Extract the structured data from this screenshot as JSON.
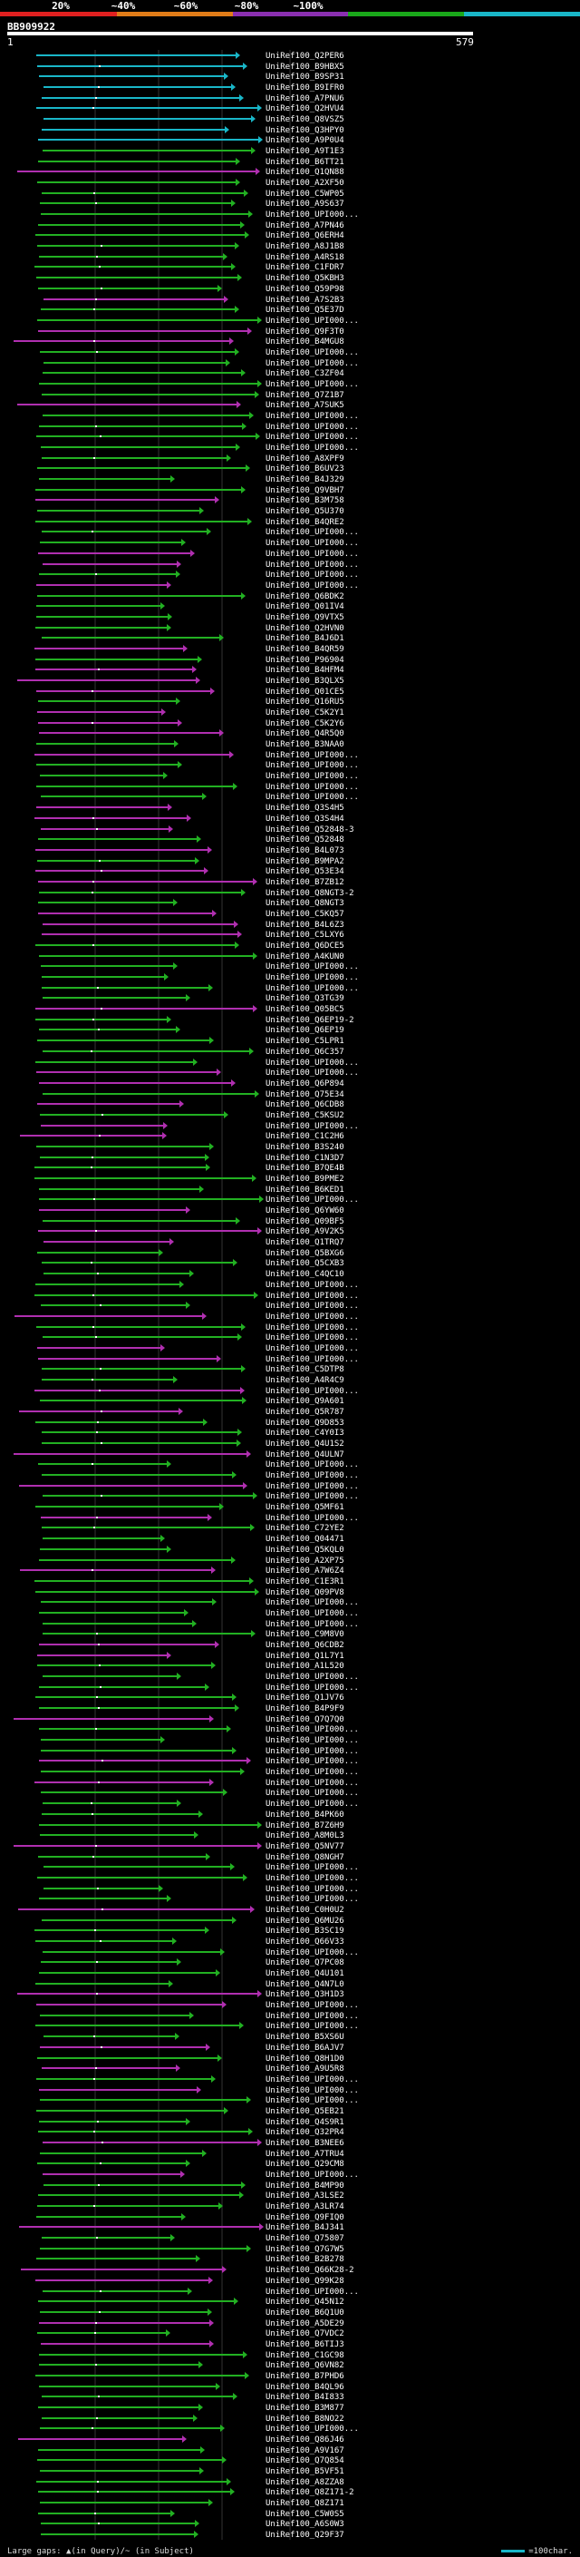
{
  "legend": {
    "segments": [
      {
        "label": "20%",
        "color": "#e02020"
      },
      {
        "label": "~40%",
        "color": "#e07c18"
      },
      {
        "label": "~60%",
        "color": "#8a2fb0"
      },
      {
        "label": "~80%",
        "color": "#1aa81a"
      },
      {
        "label": "~100%",
        "color": "#19b6c8"
      }
    ]
  },
  "query": {
    "id": "BB909922",
    "start": "1",
    "end": "579"
  },
  "footer": {
    "gaps_text": "Large gaps: ▲(in Query)/~ (in Subject)",
    "scale_text": "=100char."
  },
  "identity_colors": {
    "cyan": "#19b6c8",
    "green": "#22b022",
    "magenta": "#b02fb0"
  },
  "hits": [
    "UniRef100_Q2PER6",
    "UniRef100_B9HBX5",
    "UniRef100_B9SP31",
    "UniRef100_B9IFR0",
    "UniRef100_A7PNU6",
    "UniRef100_Q2HVU4",
    "UniRef100_Q8VSZ5",
    "UniRef100_Q3HPY0",
    "UniRef100_A9P0U4",
    "UniRef100_A9T1E3",
    "UniRef100_B6TT21",
    "UniRef100_Q1QN88",
    "UniRef100_A2XF50",
    "UniRef100_C5WP05",
    "UniRef100_A9S637",
    "UniRef100_UPI000...",
    "UniRef100_A7PN46",
    "UniRef100_Q6ERH4",
    "UniRef100_A8J1B8",
    "UniRef100_A4RS18",
    "UniRef100_C1FDR7",
    "UniRef100_Q5KBH3",
    "UniRef100_Q59P98",
    "UniRef100_A7S2B3",
    "UniRef100_Q5E37D",
    "UniRef100_UPI000...",
    "UniRef100_Q9F3T0",
    "UniRef100_B4MGU8",
    "UniRef100_UPI000...",
    "UniRef100_UPI000...",
    "UniRef100_C3ZF04",
    "UniRef100_UPI000...",
    "UniRef100_Q7Z1B7",
    "UniRef100_A7SUK5",
    "UniRef100_UPI000...",
    "UniRef100_UPI000...",
    "UniRef100_UPI000...",
    "UniRef100_UPI000...",
    "UniRef100_A8XPF9",
    "UniRef100_B6UV23",
    "UniRef100_B4J329",
    "UniRef100_Q9VBH7",
    "UniRef100_B3M758",
    "UniRef100_Q5U370",
    "UniRef100_B4QRE2",
    "UniRef100_UPI000...",
    "UniRef100_UPI000...",
    "UniRef100_UPI000...",
    "UniRef100_UPI000...",
    "UniRef100_UPI000...",
    "UniRef100_UPI000...",
    "UniRef100_Q6BDK2",
    "UniRef100_Q01IV4",
    "UniRef100_Q9VTX5",
    "UniRef100_Q2HVN0",
    "UniRef100_B4J6D1",
    "UniRef100_B4QR59",
    "UniRef100_P96904",
    "UniRef100_B4HFM4",
    "UniRef100_B3QLX5",
    "UniRef100_Q01CE5",
    "UniRef100_Q16RU5",
    "UniRef100_C5K2Y1",
    "UniRef100_C5K2Y6",
    "UniRef100_Q4R5Q0",
    "UniRef100_B3NAA0",
    "UniRef100_UPI000...",
    "UniRef100_UPI000...",
    "UniRef100_UPI000...",
    "UniRef100_UPI000...",
    "UniRef100_UPI000...",
    "UniRef100_Q3S4H5",
    "UniRef100_Q3S4H4",
    "UniRef100_Q52848-3",
    "UniRef100_Q52848",
    "UniRef100_B4L073",
    "UniRef100_B9MPA2",
    "UniRef100_Q53E34",
    "UniRef100_B7ZB12",
    "UniRef100_Q8NGT3-2",
    "UniRef100_Q8NGT3",
    "UniRef100_C5KQ57",
    "UniRef100_B4L6Z3",
    "UniRef100_C5LXY6",
    "UniRef100_Q6DCE5",
    "UniRef100_A4KUN0",
    "UniRef100_UPI000...",
    "UniRef100_UPI000...",
    "UniRef100_UPI000...",
    "UniRef100_Q3TG39",
    "UniRef100_Q05BC5",
    "UniRef100_Q6EP19-2",
    "UniRef100_Q6EP19",
    "UniRef100_C5LPR1",
    "UniRef100_Q6C357",
    "UniRef100_UPI000...",
    "UniRef100_UPI000...",
    "UniRef100_Q6P894",
    "UniRef100_Q75E34",
    "UniRef100_Q6CDB8",
    "UniRef100_C5KSU2",
    "UniRef100_UPI000...",
    "UniRef100_C1C2H6",
    "UniRef100_B3S240",
    "UniRef100_C1N3D7",
    "UniRef100_B7QE4B",
    "UniRef100_B9PME2",
    "UniRef100_B6KED1",
    "UniRef100_UPI000...",
    "UniRef100_Q6YW60",
    "UniRef100_Q09BF5",
    "UniRef100_A9V2K5",
    "UniRef100_Q1TRQ7",
    "UniRef100_Q5BXG6",
    "UniRef100_Q5CXB3",
    "UniRef100_C4QC10",
    "UniRef100_UPI000...",
    "UniRef100_UPI000...",
    "UniRef100_UPI000...",
    "UniRef100_UPI000...",
    "UniRef100_UPI000...",
    "UniRef100_UPI000...",
    "UniRef100_UPI000...",
    "UniRef100_UPI000...",
    "UniRef100_C5DTP8",
    "UniRef100_A4R4C9",
    "UniRef100_UPI000...",
    "UniRef100_Q9A601",
    "UniRef100_Q5R787",
    "UniRef100_Q9D853",
    "UniRef100_C4Y0I3",
    "UniRef100_Q4U1S2",
    "UniRef100_Q4ULN7",
    "UniRef100_UPI000...",
    "UniRef100_UPI000...",
    "UniRef100_UPI000...",
    "UniRef100_UPI000...",
    "UniRef100_Q5MF61",
    "UniRef100_UPI000...",
    "UniRef100_C72YE2",
    "UniRef100_Q04471",
    "UniRef100_Q5KQL0",
    "UniRef100_A2XP75",
    "UniRef100_A7W6Z4",
    "UniRef100_C1E3R1",
    "UniRef100_Q09PV8",
    "UniRef100_UPI000...",
    "UniRef100_UPI000...",
    "UniRef100_UPI000...",
    "UniRef100_C9M8V0",
    "UniRef100_Q6CDB2",
    "UniRef100_Q1L7Y1",
    "UniRef100_A1L520",
    "UniRef100_UPI000...",
    "UniRef100_UPI000...",
    "UniRef100_Q1JV76",
    "UniRef100_B4P9F9",
    "UniRef100_Q7Q7Q0",
    "UniRef100_UPI000...",
    "UniRef100_UPI000...",
    "UniRef100_UPI000...",
    "UniRef100_UPI000...",
    "UniRef100_UPI000...",
    "UniRef100_UPI000...",
    "UniRef100_UPI000...",
    "UniRef100_UPI000...",
    "UniRef100_B4PK60",
    "UniRef100_B7Z6H9",
    "UniRef100_A8M0L3",
    "UniRef100_Q5NV77",
    "UniRef100_Q8NGH7",
    "UniRef100_UPI000...",
    "UniRef100_UPI000...",
    "UniRef100_UPI000...",
    "UniRef100_UPI000...",
    "UniRef100_C0H0U2",
    "UniRef100_Q6MU26",
    "UniRef100_B3SC19",
    "UniRef100_Q66V33",
    "UniRef100_UPI000...",
    "UniRef100_Q7PC08",
    "UniRef100_Q4U101",
    "UniRef100_Q4N7L0",
    "UniRef100_Q3H1D3",
    "UniRef100_UPI000...",
    "UniRef100_UPI000...",
    "UniRef100_UPI000...",
    "UniRef100_B5XS6U",
    "UniRef100_B6AJV7",
    "UniRef100_Q8H1D0",
    "UniRef100_A9U5R8",
    "UniRef100_UPI000...",
    "UniRef100_UPI000...",
    "UniRef100_UPI000...",
    "UniRef100_Q5EB21",
    "UniRef100_Q4S9R1",
    "UniRef100_Q32PR4",
    "UniRef100_B3NEE6",
    "UniRef100_A7TRU4",
    "UniRef100_Q29CM8",
    "UniRef100_UPI000...",
    "UniRef100_B4MP90",
    "UniRef100_A3LSE2",
    "UniRef100_A3LR74",
    "UniRef100_Q9FIQ0",
    "UniRef100_B4J341",
    "UniRef100_Q75807",
    "UniRef100_Q7G7W5",
    "UniRef100_B2B278",
    "UniRef100_Q66K28-2",
    "UniRef100_Q99K28",
    "UniRef100_UPI000...",
    "UniRef100_Q45N12",
    "UniRef100_B6Q1U0",
    "UniRef100_A5DE29",
    "UniRef100_Q7VDC2",
    "UniRef100_B6TIJ3",
    "UniRef100_C1GC98",
    "UniRef100_Q6VN82",
    "UniRef100_B7PHD6",
    "UniRef100_B4QL96",
    "UniRef100_B4I833",
    "UniRef100_B3M877",
    "UniRef100_B8NO22",
    "UniRef100_UPI000...",
    "UniRef100_Q86J46",
    "UniRef100_A9V167",
    "UniRef100_Q7Q854",
    "UniRef100_B5VF51",
    "UniRef100_A8ZZA8",
    "UniRef100_Q8Z171-2",
    "UniRef100_Q8Z171",
    "UniRef100_C5W0S5",
    "UniRef100_A6S0W3",
    "UniRef100_Q29F37"
  ]
}
